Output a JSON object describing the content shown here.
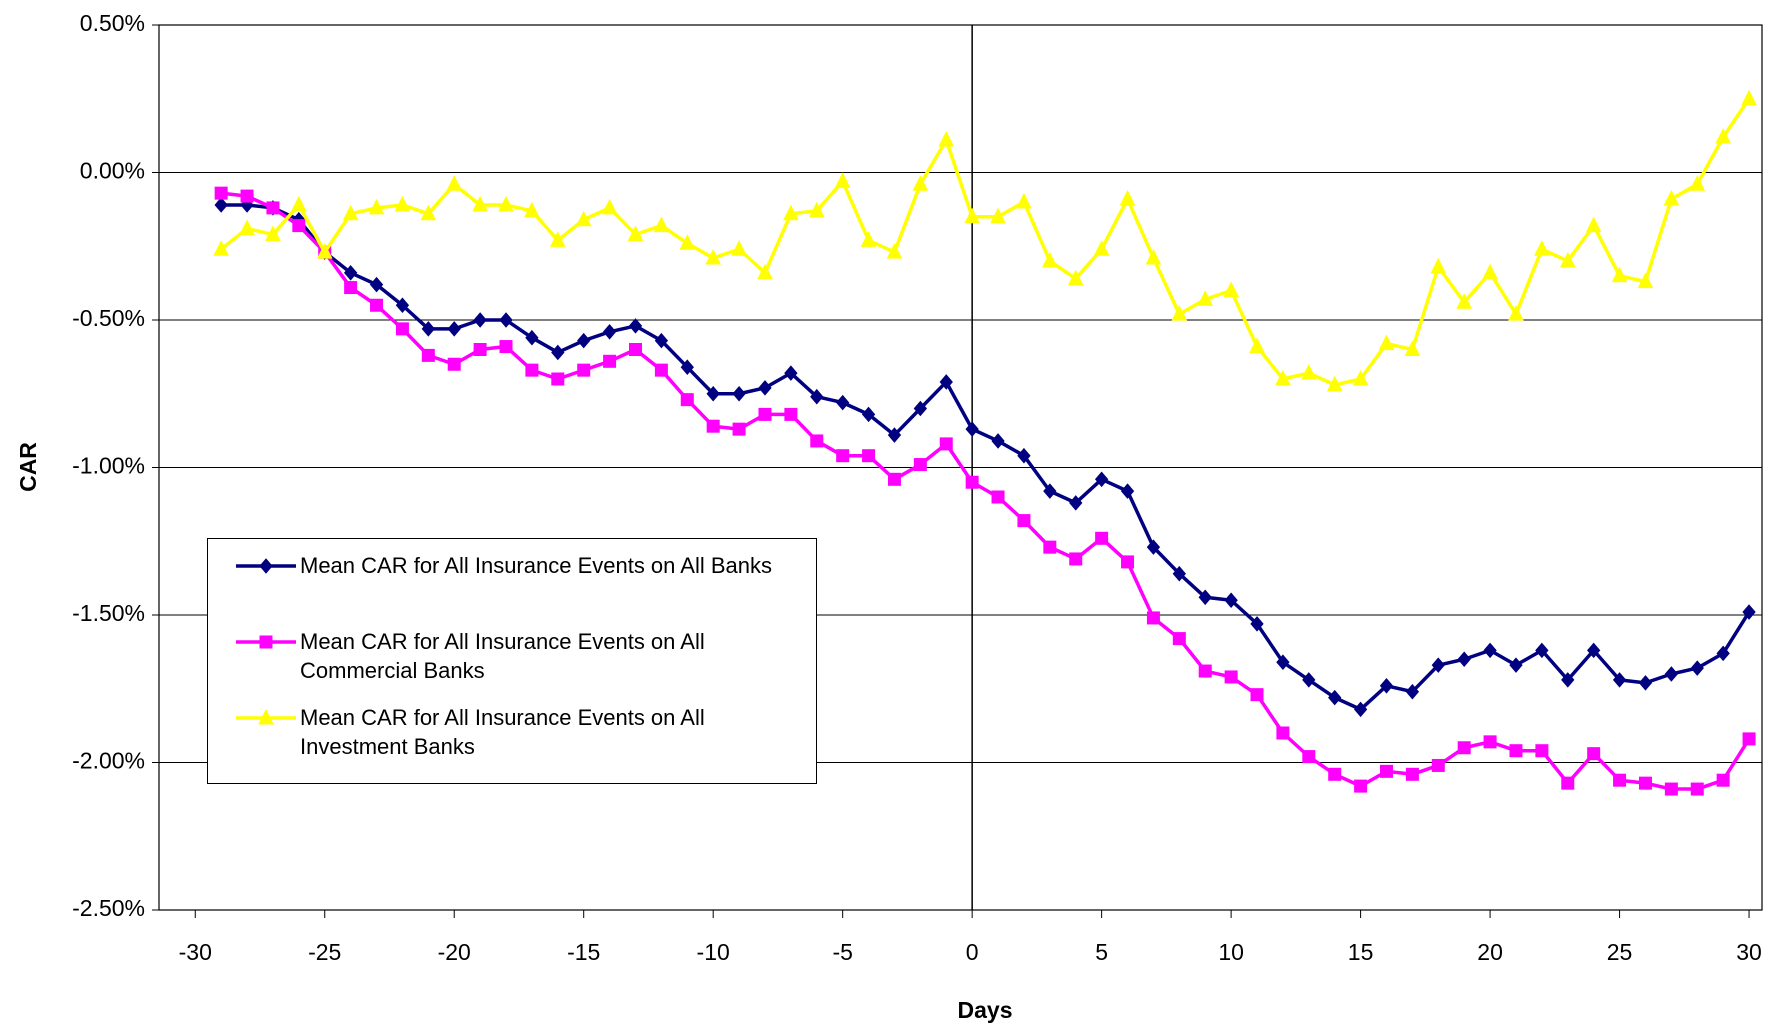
{
  "chart_data": {
    "type": "line",
    "x_label": "Days",
    "y_label": "CAR",
    "x": [
      -29,
      -28,
      -27,
      -26,
      -25,
      -24,
      -23,
      -22,
      -21,
      -20,
      -19,
      -18,
      -17,
      -16,
      -15,
      -14,
      -13,
      -12,
      -11,
      -10,
      -9,
      -8,
      -7,
      -6,
      -5,
      -4,
      -3,
      -2,
      -1,
      0,
      1,
      2,
      3,
      4,
      5,
      6,
      7,
      8,
      9,
      10,
      11,
      12,
      13,
      14,
      15,
      16,
      17,
      18,
      19,
      20,
      21,
      22,
      23,
      24,
      25,
      26,
      27,
      28,
      29,
      30
    ],
    "series": [
      {
        "name": "Mean CAR for All Insurance Events on All Banks",
        "color": "#000080",
        "marker": "diamond",
        "values": [
          -0.11,
          -0.11,
          -0.12,
          -0.16,
          -0.27,
          -0.34,
          -0.38,
          -0.45,
          -0.53,
          -0.53,
          -0.5,
          -0.5,
          -0.56,
          -0.61,
          -0.57,
          -0.54,
          -0.52,
          -0.57,
          -0.66,
          -0.75,
          -0.75,
          -0.73,
          -0.68,
          -0.76,
          -0.78,
          -0.82,
          -0.89,
          -0.8,
          -0.71,
          -0.87,
          -0.91,
          -0.96,
          -1.08,
          -1.12,
          -1.04,
          -1.08,
          -1.27,
          -1.36,
          -1.44,
          -1.45,
          -1.53,
          -1.66,
          -1.72,
          -1.78,
          -1.82,
          -1.74,
          -1.76,
          -1.67,
          -1.65,
          -1.62,
          -1.67,
          -1.62,
          -1.72,
          -1.62,
          -1.72,
          -1.73,
          -1.7,
          -1.68,
          -1.63,
          -1.49
        ]
      },
      {
        "name": "Mean CAR for All Insurance Events on All Commercial Banks",
        "color": "#ff00ff",
        "marker": "square",
        "values": [
          -0.07,
          -0.08,
          -0.12,
          -0.18,
          -0.27,
          -0.39,
          -0.45,
          -0.53,
          -0.62,
          -0.65,
          -0.6,
          -0.59,
          -0.67,
          -0.7,
          -0.67,
          -0.64,
          -0.6,
          -0.67,
          -0.77,
          -0.86,
          -0.87,
          -0.82,
          -0.82,
          -0.91,
          -0.96,
          -0.96,
          -1.04,
          -0.99,
          -0.92,
          -1.05,
          -1.1,
          -1.18,
          -1.27,
          -1.31,
          -1.24,
          -1.32,
          -1.51,
          -1.58,
          -1.69,
          -1.71,
          -1.77,
          -1.9,
          -1.98,
          -2.04,
          -2.08,
          -2.03,
          -2.04,
          -2.01,
          -1.95,
          -1.93,
          -1.96,
          -1.96,
          -2.07,
          -1.97,
          -2.06,
          -2.07,
          -2.09,
          -2.09,
          -2.06,
          -1.92
        ]
      },
      {
        "name": "Mean CAR for All Insurance Events on All Investment Banks",
        "color": "#ffff00",
        "marker": "triangle",
        "values": [
          -0.26,
          -0.19,
          -0.21,
          -0.11,
          -0.27,
          -0.14,
          -0.12,
          -0.11,
          -0.14,
          -0.04,
          -0.11,
          -0.11,
          -0.13,
          -0.23,
          -0.16,
          -0.12,
          -0.21,
          -0.18,
          -0.24,
          -0.29,
          -0.26,
          -0.34,
          -0.14,
          -0.13,
          -0.03,
          -0.23,
          -0.27,
          -0.04,
          0.11,
          -0.15,
          -0.15,
          -0.1,
          -0.3,
          -0.36,
          -0.26,
          -0.09,
          -0.29,
          -0.48,
          -0.43,
          -0.4,
          -0.59,
          -0.7,
          -0.68,
          -0.72,
          -0.7,
          -0.58,
          -0.6,
          -0.32,
          -0.44,
          -0.34,
          -0.48,
          -0.26,
          -0.3,
          -0.18,
          -0.35,
          -0.37,
          -0.09,
          -0.04,
          0.12,
          0.25
        ]
      }
    ],
    "xlim": [
      -31.4,
      30.5
    ],
    "xticks": [
      -30,
      -25,
      -20,
      -15,
      -10,
      -5,
      0,
      5,
      10,
      15,
      20,
      25,
      30
    ],
    "ylim": [
      -2.5,
      0.5
    ],
    "yticks": [
      {
        "value": -2.5,
        "label": "-2.50%"
      },
      {
        "value": -2,
        "label": "-2.00%"
      },
      {
        "value": -1.5,
        "label": "-1.50%"
      },
      {
        "value": -1,
        "label": "-1.00%"
      },
      {
        "value": -0.5,
        "label": "-0.50%"
      },
      {
        "value": 0,
        "label": "0.00%"
      },
      {
        "value": 0.5,
        "label": "0.50%"
      }
    ],
    "grid": true,
    "legend": "lower-left"
  }
}
